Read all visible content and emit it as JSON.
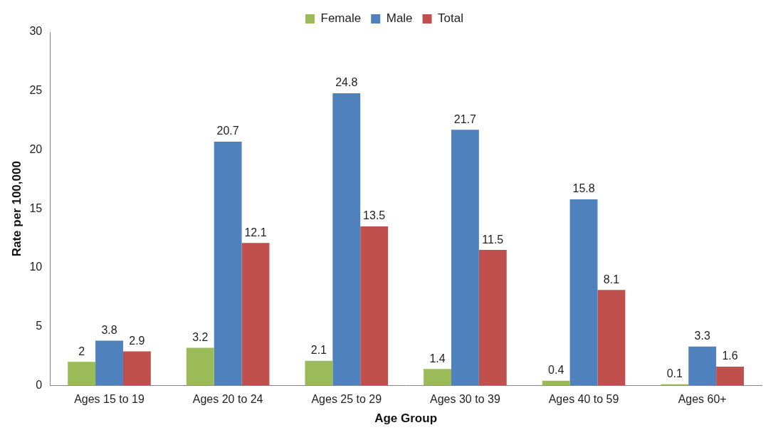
{
  "chart_data": {
    "type": "bar",
    "x_label": "Age Group",
    "y_label": "Rate per 100,000",
    "categories": [
      "Ages 15 to 19",
      "Ages 20 to 24",
      "Ages 25 to 29",
      "Ages 30 to 39",
      "Ages 40 to 59",
      "Ages 60+"
    ],
    "series": [
      {
        "name": "Female",
        "color": "#9bbb59",
        "values": [
          2,
          3.2,
          2.1,
          1.4,
          0.4,
          0.1
        ]
      },
      {
        "name": "Male",
        "color": "#4f81bd",
        "values": [
          3.8,
          20.7,
          24.8,
          21.7,
          15.8,
          3.3
        ]
      },
      {
        "name": "Total",
        "color": "#c0504d",
        "values": [
          2.9,
          12.1,
          13.5,
          11.5,
          8.1,
          1.6
        ]
      }
    ],
    "ylim": [
      0,
      30
    ],
    "yticks": [
      0,
      5,
      10,
      15,
      20,
      25,
      30
    ],
    "grid": false,
    "legend": "top",
    "data_labels": true
  }
}
